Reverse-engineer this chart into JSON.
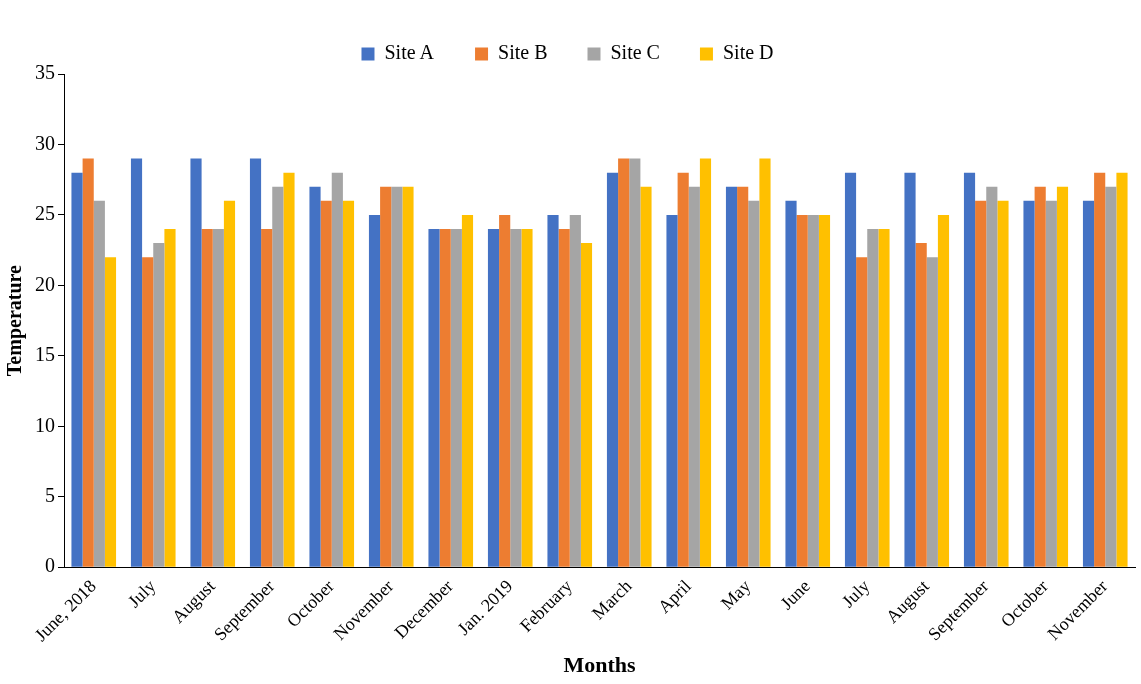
{
  "chart_data": {
    "type": "bar",
    "xlabel": "Months",
    "ylabel": "Temperature",
    "categories": [
      "June, 2018",
      "July",
      "August",
      "September",
      "October",
      "November",
      "December",
      "Jan. 2019",
      "February",
      "March",
      "April",
      "May",
      "June",
      "July",
      "August",
      "September",
      "October",
      "November"
    ],
    "series": [
      {
        "name": "Site A",
        "color": "#4472c4",
        "values": [
          28,
          29,
          29,
          29,
          27,
          25,
          24,
          24,
          25,
          28,
          25,
          27,
          26,
          28,
          28,
          28,
          26,
          26
        ]
      },
      {
        "name": "Site B",
        "color": "#ed7d31",
        "values": [
          29,
          22,
          24,
          24,
          26,
          27,
          24,
          25,
          24,
          29,
          28,
          27,
          25,
          22,
          23,
          26,
          27,
          28
        ]
      },
      {
        "name": "Site C",
        "color": "#a5a5a5",
        "values": [
          26,
          23,
          24,
          27,
          28,
          27,
          24,
          24,
          25,
          29,
          27,
          26,
          25,
          24,
          22,
          27,
          26,
          27
        ]
      },
      {
        "name": "Site D",
        "color": "#ffc000",
        "values": [
          22,
          24,
          26,
          28,
          26,
          27,
          25,
          24,
          23,
          27,
          29,
          29,
          25,
          24,
          25,
          26,
          27,
          28
        ]
      }
    ],
    "ylim": [
      0,
      35
    ],
    "yticks": [
      0,
      5,
      10,
      15,
      20,
      25,
      30,
      35
    ],
    "grid": false,
    "legend": "top"
  }
}
